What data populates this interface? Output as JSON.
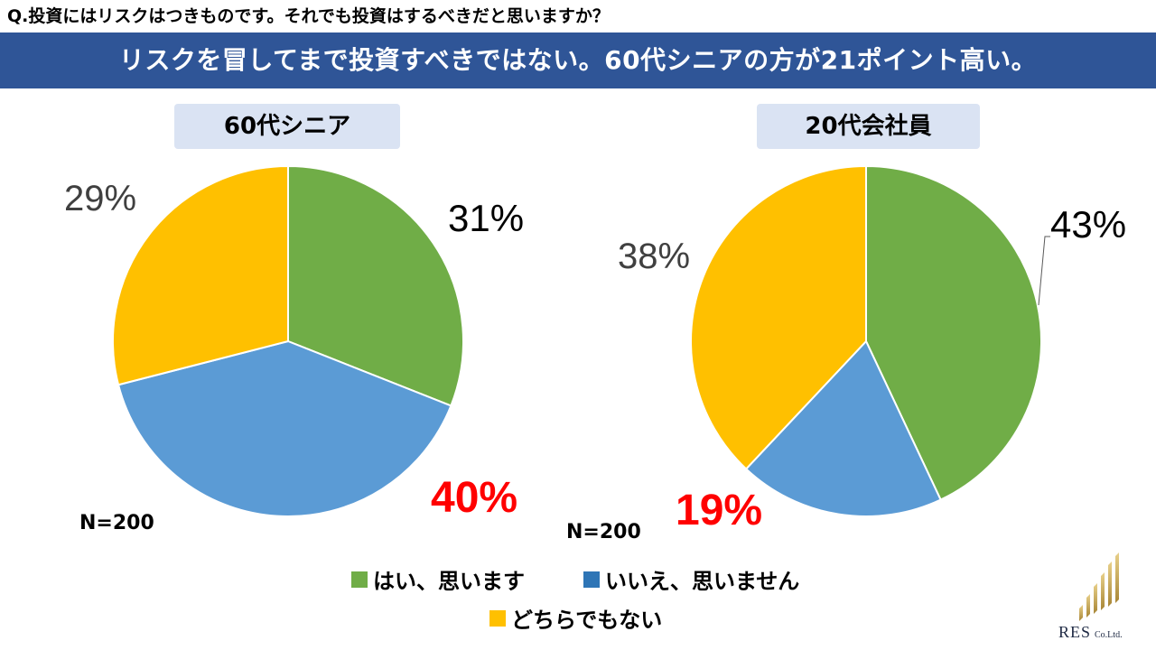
{
  "question": "Q.投資にはリスクはつきものです。それでも投資はするべきだと思いますか？",
  "headline": "リスクを冒してまで投資すべきではない。60代シニアの方が21ポイント高い。",
  "colors": {
    "yes": "#70ad47",
    "no": "#5b9bd5",
    "neither": "#ffc000",
    "banner": "#2f5597",
    "highlight": "#ff0000"
  },
  "chart_data": [
    {
      "type": "pie",
      "title": "60代シニア",
      "n_label": "N=200",
      "slices": [
        {
          "label": "はい、思います",
          "value": 31,
          "display": "31%"
        },
        {
          "label": "いいえ、思いません",
          "value": 40,
          "display": "40%"
        },
        {
          "label": "どちらでもない",
          "value": 29,
          "display": "29%"
        }
      ]
    },
    {
      "type": "pie",
      "title": "20代会社員",
      "n_label": "N=200",
      "slices": [
        {
          "label": "はい、思います",
          "value": 43,
          "display": "43%"
        },
        {
          "label": "いいえ、思いません",
          "value": 19,
          "display": "19%"
        },
        {
          "label": "どちらでもない",
          "value": 38,
          "display": "38%"
        }
      ]
    }
  ],
  "legend": [
    {
      "label": "はい、思います",
      "color_key": "yes"
    },
    {
      "label": "いいえ、思いません",
      "color_key": "no"
    },
    {
      "label": "どちらでもない",
      "color_key": "neither"
    }
  ],
  "logo": {
    "name": "RES",
    "suffix": "Co.Ltd.",
    "icon": "bar-stripes-logo-icon"
  }
}
